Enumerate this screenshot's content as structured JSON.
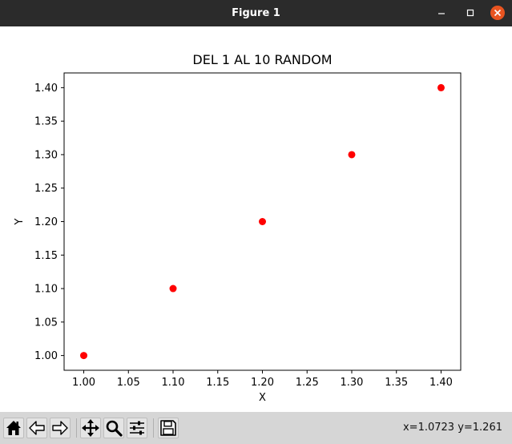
{
  "window": {
    "title": "Figure 1"
  },
  "toolbar": {
    "buttons": [
      {
        "name": "home-button",
        "icon": "home-icon"
      },
      {
        "name": "back-button",
        "icon": "back-arrow-icon"
      },
      {
        "name": "forward-button",
        "icon": "forward-arrow-icon"
      },
      {
        "name": "pan-button",
        "icon": "move-icon"
      },
      {
        "name": "zoom-button",
        "icon": "magnifier-icon"
      },
      {
        "name": "configure-subplots-button",
        "icon": "sliders-icon"
      },
      {
        "name": "save-figure-button",
        "icon": "floppy-disk-icon"
      }
    ],
    "coords": "x=1.0723 y=1.261"
  },
  "colors": {
    "titlebar": "#2b2b2b",
    "close": "#e95420",
    "marker": "#ff0000",
    "toolbar": "#d6d6d6"
  },
  "chart_data": {
    "type": "scatter",
    "title": "DEL 1 AL 10 RANDOM",
    "xlabel": "X",
    "ylabel": "Y",
    "x": [
      1.0,
      1.1,
      1.2,
      1.3,
      1.4
    ],
    "y": [
      1.0,
      1.1,
      1.2,
      1.3,
      1.4
    ],
    "marker_color": "#ff0000",
    "xlim": [
      0.978,
      1.422
    ],
    "ylim": [
      0.978,
      1.422
    ],
    "xticks": [
      "1.00",
      "1.05",
      "1.10",
      "1.15",
      "1.20",
      "1.25",
      "1.30",
      "1.35",
      "1.40"
    ],
    "yticks": [
      "1.00",
      "1.05",
      "1.10",
      "1.15",
      "1.20",
      "1.25",
      "1.30",
      "1.35",
      "1.40"
    ],
    "grid": false
  }
}
